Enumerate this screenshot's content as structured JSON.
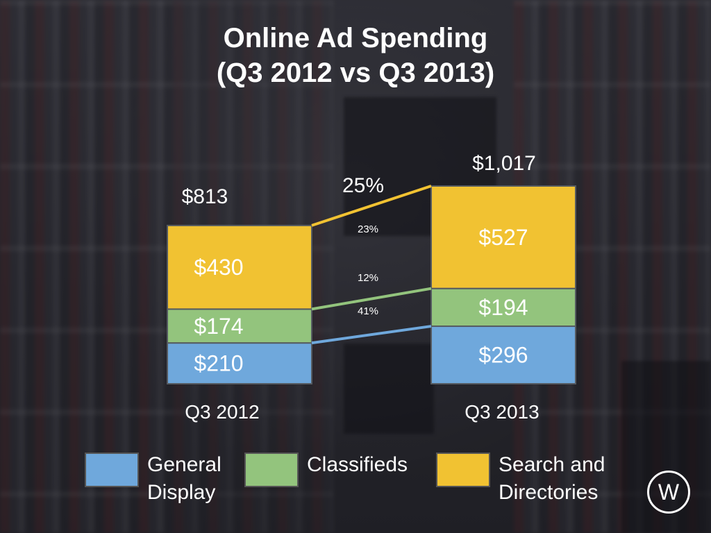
{
  "title": "Online Ad Spending\n(Q3 2012 vs Q3 2013)",
  "title_line1": "Online Ad Spending",
  "title_line2": "(Q3 2012 vs Q3 2013)",
  "colors": {
    "general_display": "#6fa8dc",
    "classifieds": "#93c47d",
    "search_and_directories": "#f1c232"
  },
  "logo_text": "W",
  "chart_data": {
    "type": "bar",
    "stacked": true,
    "categories": [
      "Q3 2012",
      "Q3 2013"
    ],
    "series": [
      {
        "name": "General Display",
        "values": [
          210,
          296
        ],
        "labels": [
          "$210",
          "$296"
        ],
        "color": "#6fa8dc"
      },
      {
        "name": "Classifieds",
        "values": [
          174,
          194
        ],
        "labels": [
          "$174",
          "$194"
        ],
        "color": "#93c47d"
      },
      {
        "name": "Search and Directories",
        "values": [
          430,
          527
        ],
        "labels": [
          "$430",
          "$527"
        ],
        "color": "#f1c232"
      }
    ],
    "totals": [
      813,
      1017
    ],
    "total_labels": [
      "$813",
      "$1,017"
    ],
    "growth": [
      {
        "series": "General Display",
        "label": "41%"
      },
      {
        "series": "Classifieds",
        "label": "12%"
      },
      {
        "series": "Search and Directories",
        "label": "23%"
      }
    ],
    "total_growth_label": "25%",
    "title": "Online Ad Spending (Q3 2012 vs Q3 2013)",
    "xlabel": "",
    "ylabel": "",
    "grid": false,
    "legend_position": "bottom"
  },
  "legend": [
    {
      "label": "General\nDisplay",
      "color": "#6fa8dc"
    },
    {
      "label": "Classifieds",
      "color": "#93c47d"
    },
    {
      "label": "Search and\nDirectories",
      "color": "#f1c232"
    }
  ]
}
